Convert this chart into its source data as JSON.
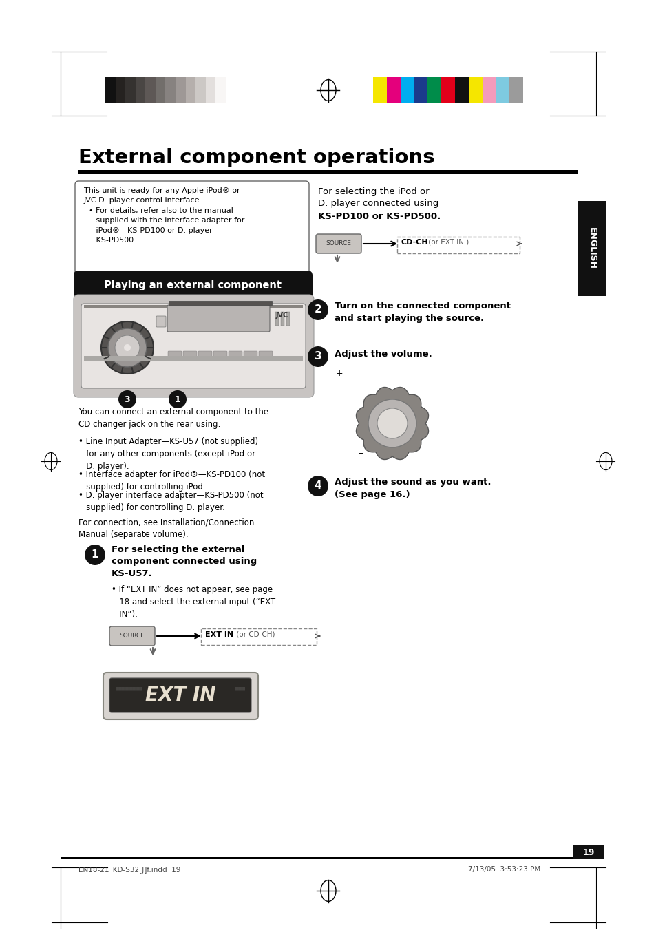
{
  "page_bg": "#ffffff",
  "title": "External component operations",
  "section_header": "Playing an external component",
  "grayscale_colors": [
    "#111111",
    "#252220",
    "#353230",
    "#4a4644",
    "#5e5856",
    "#726e6b",
    "#878280",
    "#9e9896",
    "#b5afac",
    "#ccc8c5",
    "#e3dfdd",
    "#f8f6f5"
  ],
  "color_swatches": [
    "#f5e600",
    "#e4007c",
    "#00adef",
    "#1b3a8c",
    "#008c4a",
    "#e2001a",
    "#111111",
    "#f5e600",
    "#f49bbb",
    "#7ecae0",
    "#9b9b9b"
  ],
  "text_color": "#000000",
  "footnote_text": "EN18-21_KD-S32[J]f.indd  19",
  "date_text": "7/13/05  3:53:23 PM",
  "page_number": "19"
}
